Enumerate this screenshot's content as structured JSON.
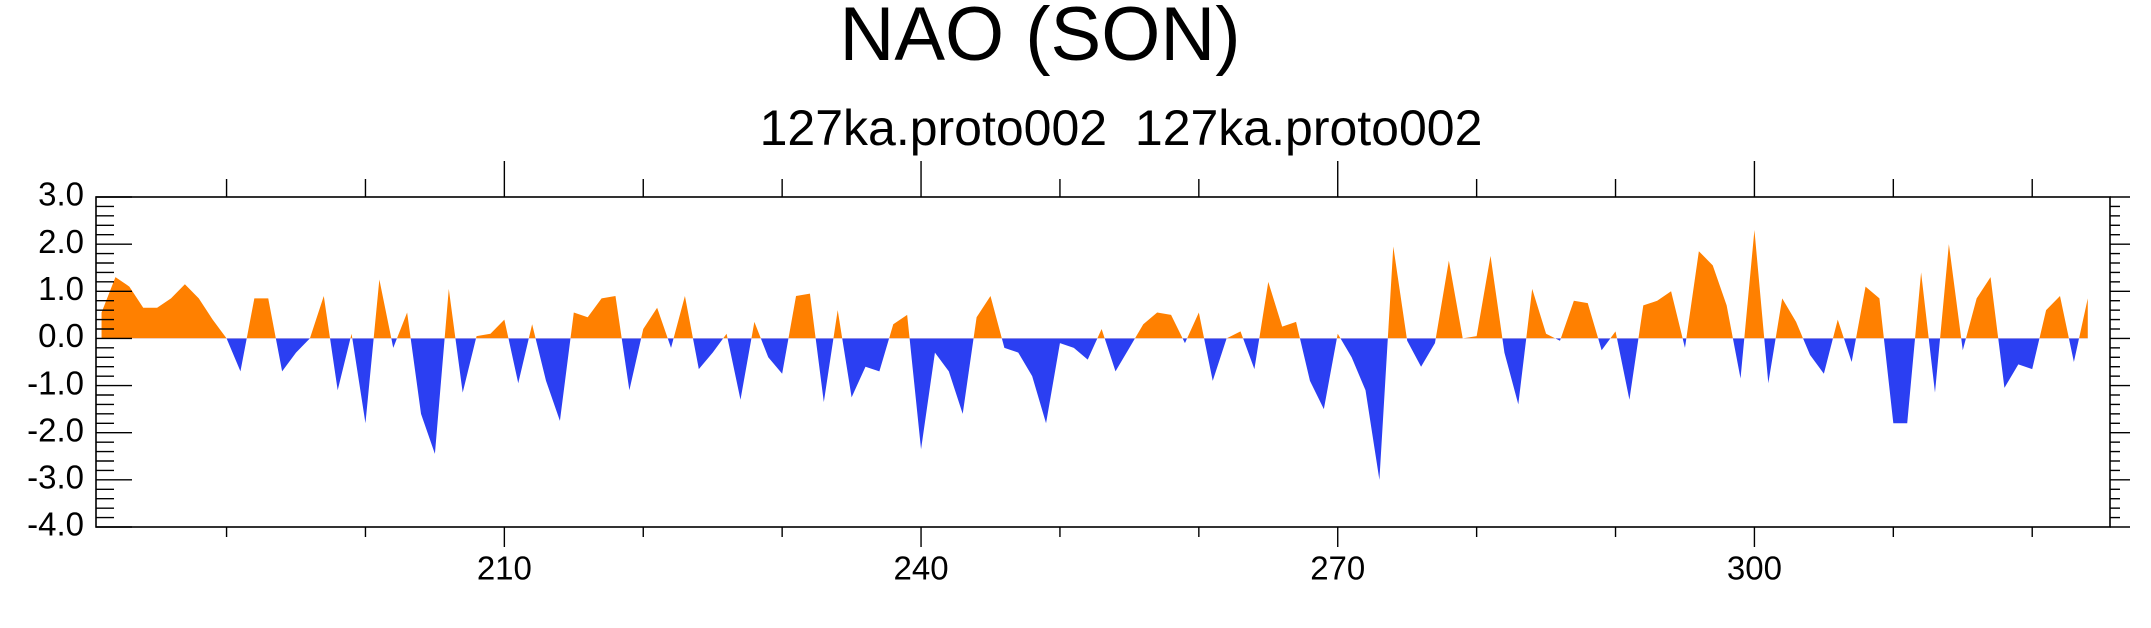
{
  "chart_data": {
    "type": "area",
    "title": "NAO (SON)",
    "subtitle": "127ka.proto002  127ka.proto002",
    "x": [
      181,
      182,
      183,
      184,
      185,
      186,
      187,
      188,
      189,
      190,
      191,
      192,
      193,
      194,
      195,
      196,
      197,
      198,
      199,
      200,
      201,
      202,
      203,
      204,
      205,
      206,
      207,
      208,
      209,
      210,
      211,
      212,
      213,
      214,
      215,
      216,
      217,
      218,
      219,
      220,
      221,
      222,
      223,
      224,
      225,
      226,
      227,
      228,
      229,
      230,
      231,
      232,
      233,
      234,
      235,
      236,
      237,
      238,
      239,
      240,
      241,
      242,
      243,
      244,
      245,
      246,
      247,
      248,
      249,
      250,
      251,
      252,
      253,
      254,
      255,
      256,
      257,
      258,
      259,
      260,
      261,
      262,
      263,
      264,
      265,
      266,
      267,
      268,
      269,
      270,
      271,
      272,
      273,
      274,
      275,
      276,
      277,
      278,
      279,
      280,
      281,
      282,
      283,
      284,
      285,
      286,
      287,
      288,
      289,
      290,
      291,
      292,
      293,
      294,
      295,
      296,
      297,
      298,
      299,
      300,
      301,
      302,
      303,
      304,
      305,
      306,
      307,
      308,
      309,
      310,
      311,
      312,
      313,
      314,
      315,
      316,
      317,
      318,
      319,
      320,
      321,
      322,
      323,
      324
    ],
    "values": [
      0.55,
      1.3,
      1.1,
      0.65,
      0.65,
      0.85,
      1.15,
      0.85,
      0.4,
      0.0,
      -0.7,
      0.85,
      0.85,
      -0.7,
      -0.3,
      0.0,
      0.9,
      -1.1,
      0.1,
      -1.8,
      1.25,
      -0.2,
      0.55,
      -1.6,
      -2.45,
      1.05,
      -1.15,
      0.05,
      0.1,
      0.4,
      -0.95,
      0.3,
      -0.9,
      -1.75,
      0.55,
      0.45,
      0.85,
      0.9,
      -1.1,
      0.2,
      0.65,
      -0.2,
      0.9,
      -0.65,
      -0.3,
      0.1,
      -1.3,
      0.35,
      -0.4,
      -0.75,
      0.9,
      0.95,
      -1.35,
      0.6,
      -1.25,
      -0.6,
      -0.7,
      0.3,
      0.5,
      -2.35,
      -0.3,
      -0.7,
      -1.6,
      0.45,
      0.9,
      -0.2,
      -0.3,
      -0.8,
      -1.8,
      -0.1,
      -0.2,
      -0.45,
      0.2,
      -0.7,
      -0.2,
      0.3,
      0.55,
      0.5,
      -0.1,
      0.55,
      -0.9,
      0.0,
      0.15,
      -0.65,
      1.2,
      0.25,
      0.35,
      -0.9,
      -1.5,
      0.1,
      -0.4,
      -1.1,
      -3.0,
      1.95,
      -0.05,
      -0.6,
      -0.1,
      1.65,
      0.0,
      0.05,
      1.75,
      -0.3,
      -1.4,
      1.05,
      0.1,
      -0.05,
      0.8,
      0.75,
      -0.25,
      0.15,
      -1.3,
      0.7,
      0.8,
      1.0,
      -0.2,
      1.85,
      1.55,
      0.7,
      -0.85,
      2.3,
      -0.95,
      0.85,
      0.35,
      -0.35,
      -0.75,
      0.4,
      -0.5,
      1.1,
      0.85,
      -1.8,
      -1.8,
      1.4,
      -1.15,
      2.0,
      -0.25,
      0.85,
      1.3,
      -1.05,
      -0.55,
      -0.65,
      0.6,
      0.9,
      -0.5,
      0.85
    ],
    "positive_color": "#ff8000",
    "negative_color": "#2b3ff2",
    "xlim": [
      180.6,
      325.6
    ],
    "xticks": [
      210,
      240,
      270,
      300
    ],
    "ylim": [
      -4,
      3
    ],
    "yticks": [
      {
        "value": -4,
        "label": "-4.0"
      },
      {
        "value": -3,
        "label": "-3.0"
      },
      {
        "value": -2,
        "label": "-2.0"
      },
      {
        "value": -1,
        "label": "-1.0"
      },
      {
        "value": 0,
        "label": "0.0"
      },
      {
        "value": 1,
        "label": "1.0"
      },
      {
        "value": 2,
        "label": "2.0"
      },
      {
        "value": 3,
        "label": "3.0"
      }
    ]
  }
}
